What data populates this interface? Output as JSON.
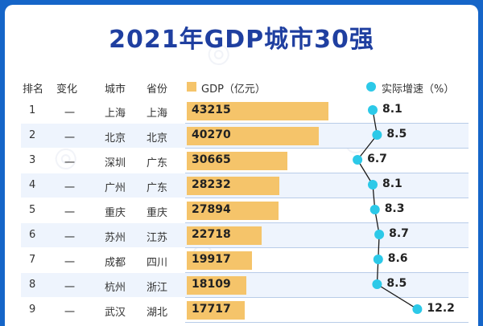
{
  "title": "2021年GDP城市30强",
  "headers": {
    "rank": "排名",
    "change": "变化",
    "city": "城市",
    "province": "省份",
    "gdp": "GDP（亿元）",
    "growth": "实际增速（%）"
  },
  "colors": {
    "bar": "#f5c46a",
    "dot": "#2cc9e8",
    "line": "#1a1a1a",
    "title": "#1f3fa0"
  },
  "chart_data": {
    "type": "bar",
    "title": "2021年GDP城市30强",
    "categories": [
      "上海",
      "北京",
      "深圳",
      "广州",
      "重庆",
      "苏州",
      "成都",
      "杭州",
      "武汉"
    ],
    "rows": [
      {
        "rank": "1",
        "change": "一",
        "city": "上海",
        "province": "上海",
        "gdp": 43215,
        "growth": 8.1
      },
      {
        "rank": "2",
        "change": "一",
        "city": "北京",
        "province": "北京",
        "gdp": 40270,
        "growth": 8.5
      },
      {
        "rank": "3",
        "change": "一",
        "city": "深圳",
        "province": "广东",
        "gdp": 30665,
        "growth": 6.7
      },
      {
        "rank": "4",
        "change": "一",
        "city": "广州",
        "province": "广东",
        "gdp": 28232,
        "growth": 8.1
      },
      {
        "rank": "5",
        "change": "一",
        "city": "重庆",
        "province": "重庆",
        "gdp": 27894,
        "growth": 8.3
      },
      {
        "rank": "6",
        "change": "一",
        "city": "苏州",
        "province": "江苏",
        "gdp": 22718,
        "growth": 8.7
      },
      {
        "rank": "7",
        "change": "一",
        "city": "成都",
        "province": "四川",
        "gdp": 19917,
        "growth": 8.6
      },
      {
        "rank": "8",
        "change": "一",
        "city": "杭州",
        "province": "浙江",
        "gdp": 18109,
        "growth": 8.5
      },
      {
        "rank": "9",
        "change": "一",
        "city": "武汉",
        "province": "湖北",
        "gdp": 17717,
        "growth": 12.2
      }
    ],
    "series": [
      {
        "name": "GDP（亿元）",
        "values": [
          43215,
          40270,
          30665,
          28232,
          27894,
          22718,
          19917,
          18109,
          17717
        ]
      },
      {
        "name": "实际增速（%）",
        "values": [
          8.1,
          8.5,
          6.7,
          8.1,
          8.3,
          8.7,
          8.6,
          8.5,
          12.2
        ]
      }
    ],
    "legend": "top"
  }
}
